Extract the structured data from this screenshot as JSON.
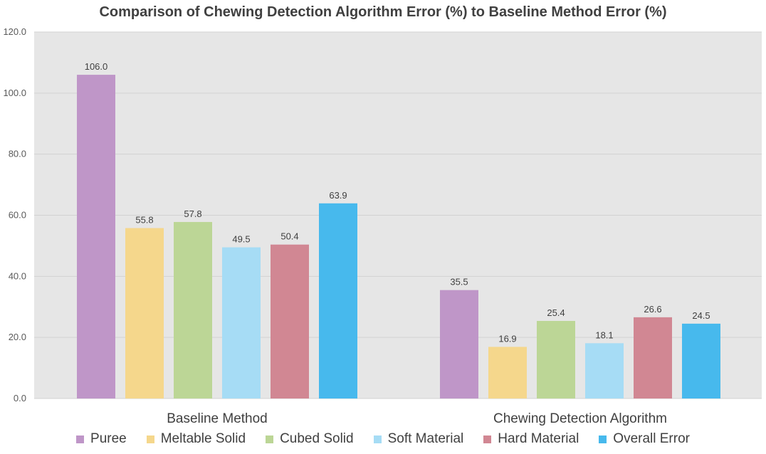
{
  "chart_data": {
    "type": "bar",
    "title": "Comparison of Chewing Detection Algorithm Error (%) to Baseline Method Error (%)",
    "categories": [
      "Baseline Method",
      "Chewing Detection Algorithm"
    ],
    "series": [
      {
        "name": "Puree",
        "color": "#bf96c8",
        "values": [
          106.0,
          35.5
        ]
      },
      {
        "name": "Meltable Solid",
        "color": "#f5d78c",
        "values": [
          55.8,
          16.9
        ]
      },
      {
        "name": "Cubed Solid",
        "color": "#bcd696",
        "values": [
          57.8,
          25.4
        ]
      },
      {
        "name": "Soft Material",
        "color": "#a6dcf5",
        "values": [
          49.5,
          18.1
        ]
      },
      {
        "name": "Hard Material",
        "color": "#d18793",
        "values": [
          50.4,
          26.6
        ]
      },
      {
        "name": "Overall Error",
        "color": "#47b9ed",
        "values": [
          63.9,
          24.5
        ]
      }
    ],
    "ylim": [
      0,
      120
    ],
    "yticks": [
      "0.0",
      "20.0",
      "40.0",
      "60.0",
      "80.0",
      "100.0",
      "120.0"
    ],
    "data_labels": [
      [
        "106.0",
        "35.5"
      ],
      [
        "55.8",
        "16.9"
      ],
      [
        "57.8",
        "25.4"
      ],
      [
        "49.5",
        "18.1"
      ],
      [
        "50.4",
        "26.6"
      ],
      [
        "63.9",
        "24.5"
      ]
    ],
    "grid": true,
    "legend_position": "bottom",
    "plot_background": "#e6e6e6"
  }
}
